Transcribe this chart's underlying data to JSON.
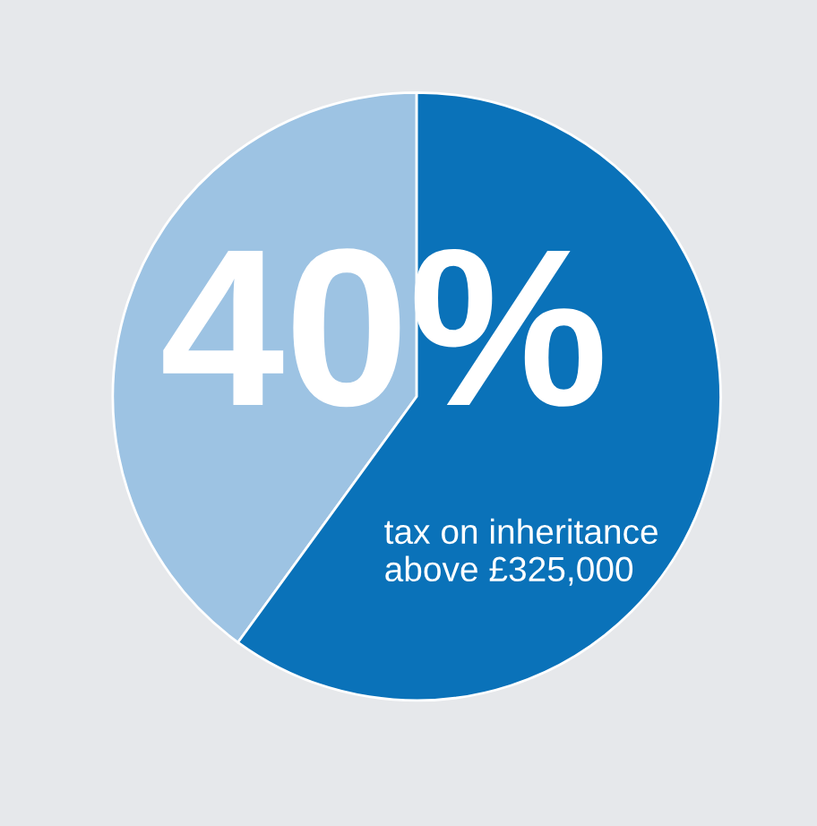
{
  "chart_data": {
    "type": "pie",
    "categories": [
      null,
      null
    ],
    "values": [
      40,
      60
    ],
    "colors": [
      "#9dc3e3",
      "#0a72b9"
    ],
    "annotations": [
      "40%",
      "tax on inheritance\nabove £325,000"
    ]
  }
}
